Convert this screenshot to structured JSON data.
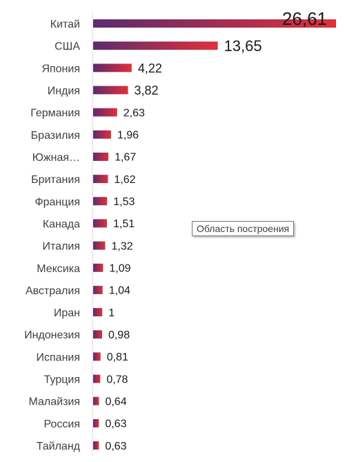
{
  "chart_data": {
    "type": "bar",
    "orientation": "horizontal",
    "title": "",
    "xlabel": "",
    "ylabel": "",
    "xlim": [
      0,
      26.61
    ],
    "grid": false,
    "legend": "none",
    "categories": [
      "Китай",
      "США",
      "Япония",
      "Индия",
      "Германия",
      "Бразилия",
      "Южная…",
      "Британия",
      "Франция",
      "Канада",
      "Италия",
      "Мексика",
      "Австралия",
      "Иран",
      "Индонезия",
      "Испания",
      "Турция",
      "Малайзия",
      "Россия",
      "Тайланд"
    ],
    "values": [
      26.61,
      13.65,
      4.22,
      3.82,
      2.63,
      1.96,
      1.67,
      1.62,
      1.53,
      1.51,
      1.32,
      1.09,
      1.04,
      1,
      0.98,
      0.81,
      0.78,
      0.64,
      0.63,
      0.63
    ],
    "value_labels": [
      "26,61",
      "13,65",
      "4,22",
      "3,82",
      "2,63",
      "1,96",
      "1,67",
      "1,62",
      "1,53",
      "1,51",
      "1,32",
      "1,09",
      "1,04",
      "1",
      "0,98",
      "0,81",
      "0,78",
      "0,64",
      "0,63",
      "0,63"
    ],
    "colors": {
      "bar_start": "#5b2c6f",
      "bar_end": "#e0303a",
      "axis": "#d9d9d9"
    }
  },
  "tooltip": {
    "text": "Область построения"
  }
}
